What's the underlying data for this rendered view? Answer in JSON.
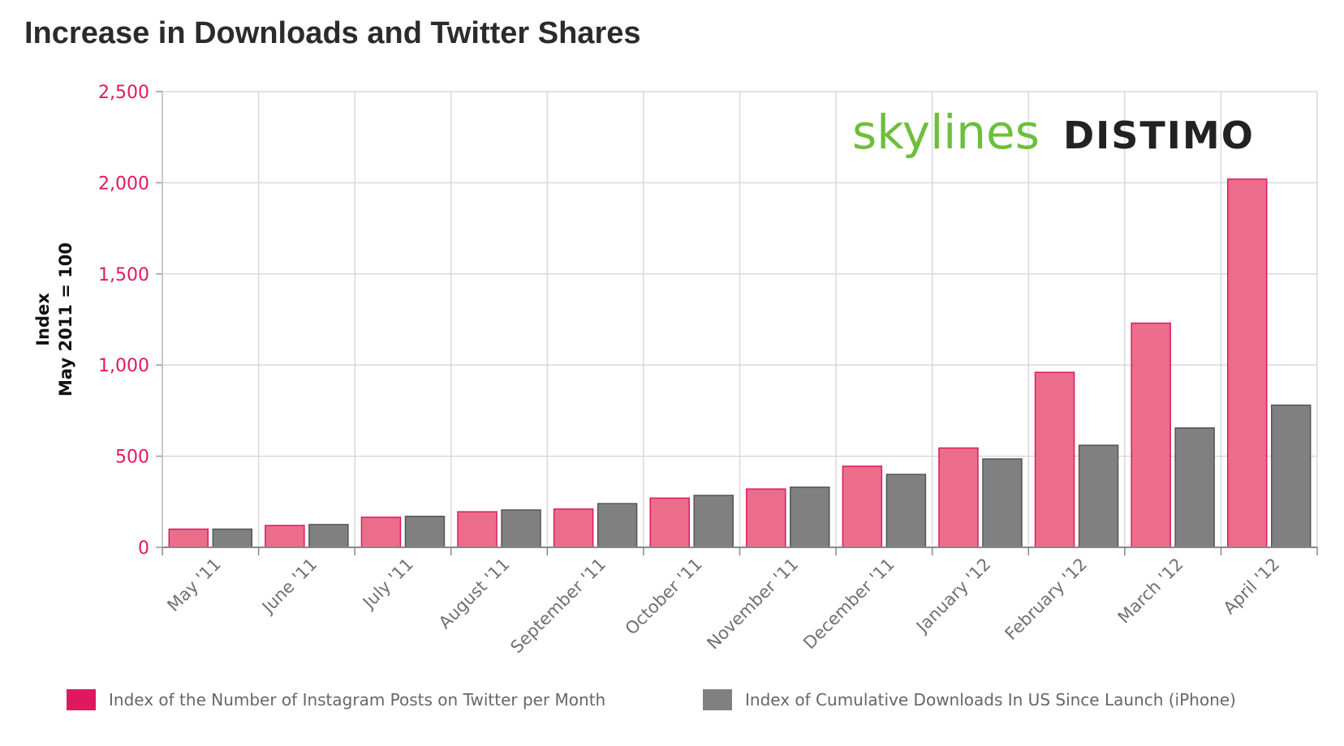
{
  "header": {
    "title": "Increase in Downloads and Twitter Shares"
  },
  "logos": {
    "primary": "skylines",
    "secondary": "DISTIMO"
  },
  "colors": {
    "series_instagram": "#ec6d8b",
    "series_instagram_border": "#e0195f",
    "series_downloads": "#808080",
    "series_downloads_border": "#555555",
    "axis_tick_y": "#e0195f",
    "grid": "#d9d9d9",
    "brand_green": "#6cbf3b"
  },
  "chart_data": {
    "type": "bar",
    "title": "Increase in Downloads and Twitter Shares",
    "xlabel": "",
    "ylabel_lines": [
      "Index",
      "May 2011 = 100"
    ],
    "ylim": [
      0,
      2500
    ],
    "yticks": [
      0,
      500,
      1000,
      1500,
      2000,
      2500
    ],
    "ytick_labels": [
      "0",
      "500",
      "1,000",
      "1,500",
      "2,000",
      "2,500"
    ],
    "grid": true,
    "legend_position": "bottom",
    "categories": [
      "May '11",
      "June '11",
      "July '11",
      "August '11",
      "September '11",
      "October '11",
      "November '11",
      "December '11",
      "January '12",
      "February '12",
      "March '12",
      "April '12"
    ],
    "series": [
      {
        "name": "Index of the Number of Instagram Posts on Twitter per Month",
        "values": [
          100,
          120,
          165,
          195,
          210,
          270,
          320,
          445,
          545,
          960,
          1230,
          2020
        ]
      },
      {
        "name": "Index of Cumulative Downloads In US Since Launch (iPhone)",
        "values": [
          100,
          125,
          170,
          205,
          240,
          285,
          330,
          400,
          485,
          560,
          655,
          780
        ]
      }
    ]
  }
}
